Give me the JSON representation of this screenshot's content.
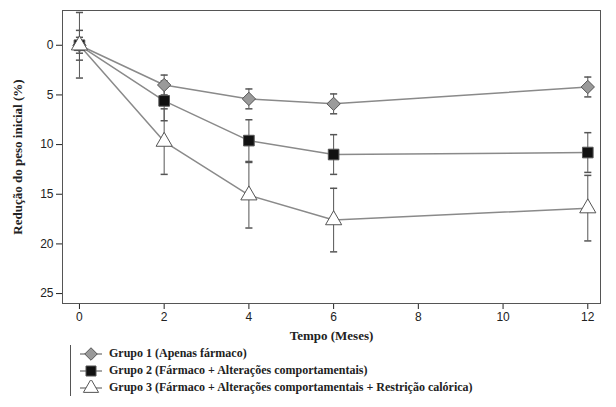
{
  "chart_data": {
    "type": "line",
    "xlabel": "Tempo (Meses)",
    "ylabel": "Redução do peso inicial (%)",
    "x": [
      0,
      2,
      4,
      6,
      12
    ],
    "series": [
      {
        "name": "Grupo 1 (Apenas fármaco)",
        "color": "#9a9a9a",
        "marker": "diamond",
        "values": [
          0,
          4.0,
          5.4,
          5.9,
          4.2
        ],
        "errors": [
          0.8,
          1.0,
          1.0,
          1.0,
          1.0
        ]
      },
      {
        "name": "Grupo 2 (Fármaco + Alterações comportamentais)",
        "color": "#111111",
        "marker": "square",
        "values": [
          0,
          5.6,
          9.6,
          11.0,
          10.8
        ],
        "errors": [
          1.5,
          2.0,
          2.1,
          2.0,
          2.0
        ]
      },
      {
        "name": "Grupo 3 (Fármaco + Alterações comportamentais + Restrição calórica)",
        "color": "#ffffff",
        "marker": "triangle",
        "values": [
          0,
          9.7,
          15.1,
          17.6,
          16.4
        ],
        "errors": [
          3.3,
          3.3,
          3.3,
          3.2,
          3.3
        ]
      }
    ],
    "xlim": [
      -0.4,
      12.3
    ],
    "xticks": [
      0,
      2,
      4,
      6,
      8,
      10,
      12
    ],
    "ylim": [
      -3.5,
      26
    ],
    "yticks": [
      0,
      5,
      10,
      15,
      20,
      25
    ],
    "grid": false,
    "legend": "bottom"
  }
}
